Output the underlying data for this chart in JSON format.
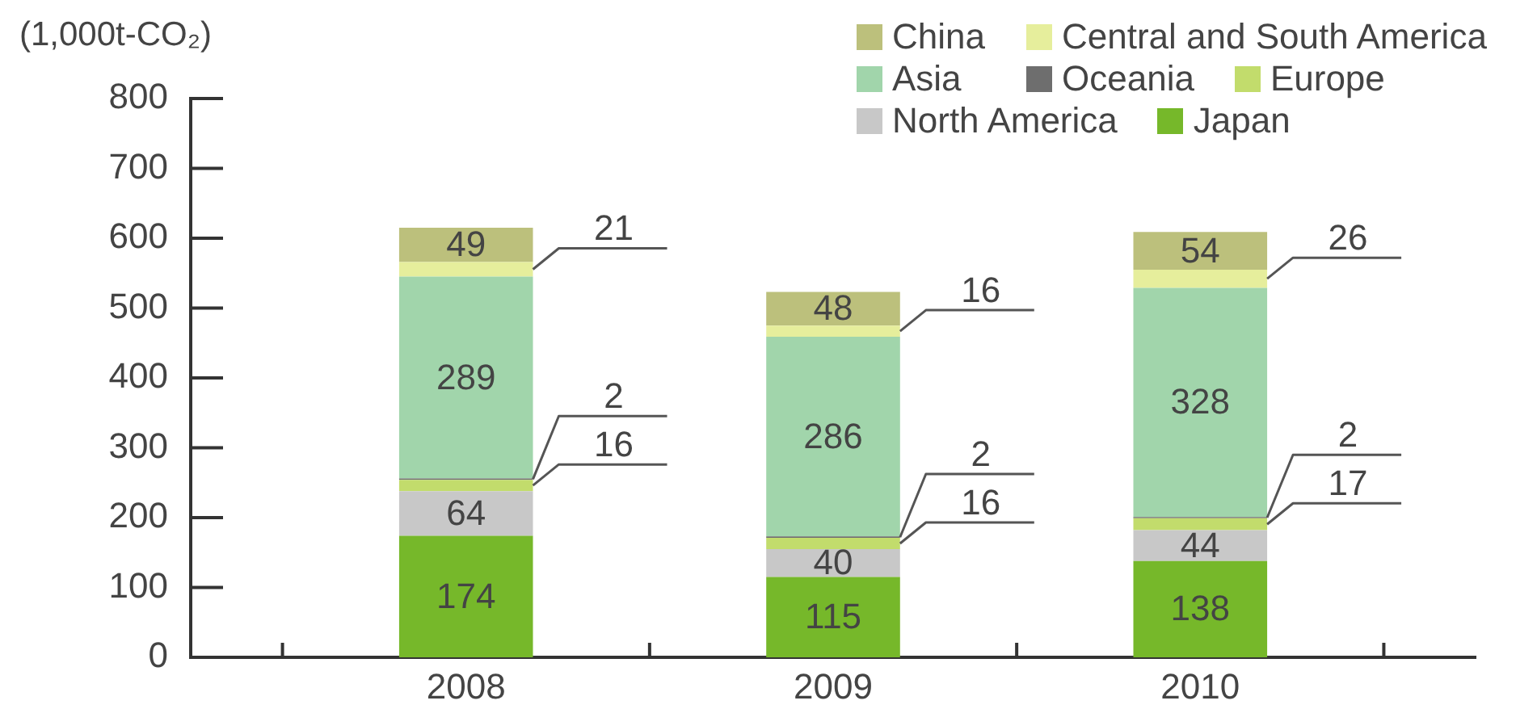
{
  "chart_data": {
    "type": "bar",
    "ylabel": "(1,000t-CO₂)",
    "categories": [
      "2008",
      "2009",
      "2010"
    ],
    "stacked": true,
    "series": [
      {
        "name": "Japan",
        "color": "#76b82a",
        "values": [
          174,
          115,
          138
        ]
      },
      {
        "name": "North America",
        "color": "#c8c8c8",
        "values": [
          64,
          40,
          44
        ]
      },
      {
        "name": "Europe",
        "color": "#c2dc6c",
        "values": [
          16,
          16,
          17
        ]
      },
      {
        "name": "Oceania",
        "color": "#6e6e6e",
        "values": [
          2,
          2,
          2
        ]
      },
      {
        "name": "Asia",
        "color": "#a1d5ab",
        "values": [
          289,
          286,
          328
        ]
      },
      {
        "name": "Central and South America",
        "color": "#e6ee9c",
        "values": [
          21,
          16,
          26
        ]
      },
      {
        "name": "China",
        "color": "#bcc07c",
        "values": [
          49,
          48,
          54
        ]
      }
    ],
    "ylim": [
      0,
      800
    ],
    "yticks": [
      0,
      100,
      200,
      300,
      400,
      500,
      600,
      700,
      800
    ],
    "legend": "top right",
    "data_labels": true
  }
}
